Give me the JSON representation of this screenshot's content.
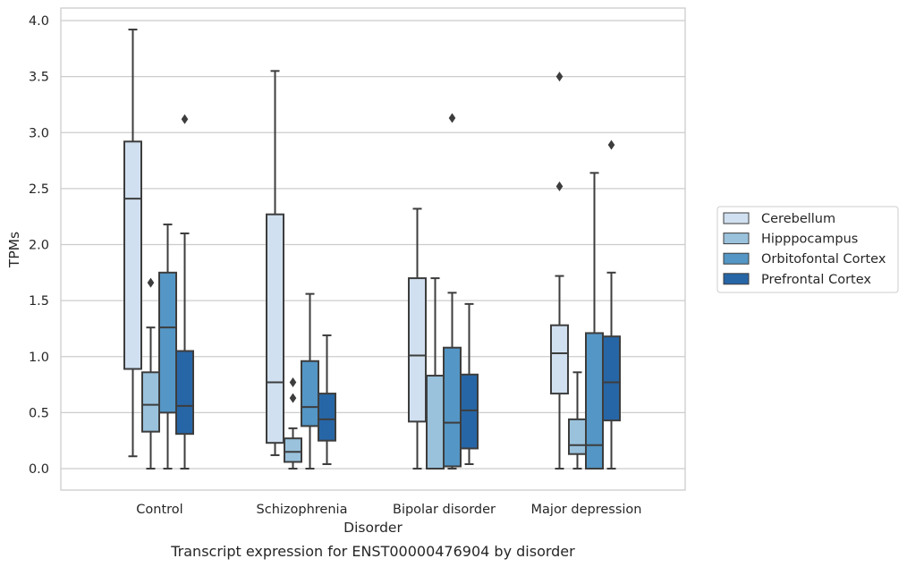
{
  "caption": "Transcript expression for ENST00000476904 by disorder",
  "chart_data": {
    "type": "box",
    "xlabel": "Disorder",
    "ylabel": "TPMs",
    "ylim": [
      -0.18,
      4.1
    ],
    "yticks": [
      "0.0",
      "0.5",
      "1.0",
      "1.5",
      "2.0",
      "2.5",
      "3.0",
      "3.5",
      "4.0"
    ],
    "grid": true,
    "legend_position": "right",
    "categories": [
      "Control",
      "Schizophrenia",
      "Bipolar disorder",
      "Major depression"
    ],
    "series": [
      {
        "name": "Cerebellum",
        "color": "#d0e0f0",
        "boxes": [
          {
            "whislo": 0.11,
            "q1": 0.89,
            "med": 2.41,
            "q3": 2.92,
            "whishi": 3.92,
            "fliers": []
          },
          {
            "whislo": 0.12,
            "q1": 0.23,
            "med": 0.77,
            "q3": 2.27,
            "whishi": 3.55,
            "fliers": []
          },
          {
            "whislo": 0.0,
            "q1": 0.42,
            "med": 1.01,
            "q3": 1.7,
            "whishi": 2.32,
            "fliers": []
          },
          {
            "whislo": 0.0,
            "q1": 0.67,
            "med": 1.03,
            "q3": 1.28,
            "whishi": 1.72,
            "fliers": [
              2.52,
              3.5
            ]
          }
        ]
      },
      {
        "name": "Hipppocampus",
        "color": "#9ac2dc",
        "boxes": [
          {
            "whislo": 0.0,
            "q1": 0.33,
            "med": 0.57,
            "q3": 0.86,
            "whishi": 1.26,
            "fliers": [
              1.66
            ]
          },
          {
            "whislo": 0.0,
            "q1": 0.06,
            "med": 0.15,
            "q3": 0.27,
            "whishi": 0.36,
            "fliers": [
              0.63,
              0.77
            ]
          },
          {
            "whislo": 0.0,
            "q1": 0.0,
            "med": 0.0,
            "q3": 0.83,
            "whishi": 1.7,
            "fliers": []
          },
          {
            "whislo": 0.0,
            "q1": 0.13,
            "med": 0.21,
            "q3": 0.44,
            "whishi": 0.86,
            "fliers": []
          }
        ]
      },
      {
        "name": "Orbitofontal Cortex",
        "color": "#5496c5",
        "boxes": [
          {
            "whislo": 0.0,
            "q1": 0.5,
            "med": 1.26,
            "q3": 1.75,
            "whishi": 2.18,
            "fliers": []
          },
          {
            "whislo": 0.0,
            "q1": 0.38,
            "med": 0.55,
            "q3": 0.96,
            "whishi": 1.56,
            "fliers": []
          },
          {
            "whislo": 0.0,
            "q1": 0.02,
            "med": 0.41,
            "q3": 1.08,
            "whishi": 1.57,
            "fliers": [
              3.13
            ]
          },
          {
            "whislo": 0.0,
            "q1": 0.0,
            "med": 0.21,
            "q3": 1.21,
            "whishi": 2.64,
            "fliers": []
          }
        ]
      },
      {
        "name": "Prefrontal Cortex",
        "color": "#2766a6",
        "boxes": [
          {
            "whislo": 0.0,
            "q1": 0.31,
            "med": 0.56,
            "q3": 1.05,
            "whishi": 2.1,
            "fliers": [
              3.12
            ]
          },
          {
            "whislo": 0.04,
            "q1": 0.25,
            "med": 0.44,
            "q3": 0.67,
            "whishi": 1.19,
            "fliers": []
          },
          {
            "whislo": 0.04,
            "q1": 0.18,
            "med": 0.52,
            "q3": 0.84,
            "whishi": 1.47,
            "fliers": []
          },
          {
            "whislo": 0.0,
            "q1": 0.43,
            "med": 0.77,
            "q3": 1.18,
            "whishi": 1.75,
            "fliers": [
              2.89
            ]
          }
        ]
      }
    ]
  }
}
